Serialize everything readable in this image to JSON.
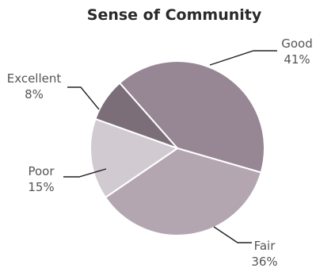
{
  "chart_data": {
    "type": "pie",
    "title": "Sense of Community",
    "categories": [
      "Good",
      "Fair",
      "Poor",
      "Excellent"
    ],
    "values": [
      41,
      36,
      15,
      8
    ],
    "value_labels": [
      "41%",
      "36%",
      "15%",
      "8%"
    ],
    "colors": [
      "#978794",
      "#b3a6b1",
      "#d1cbd1",
      "#7c6e79"
    ],
    "legend": "none"
  }
}
